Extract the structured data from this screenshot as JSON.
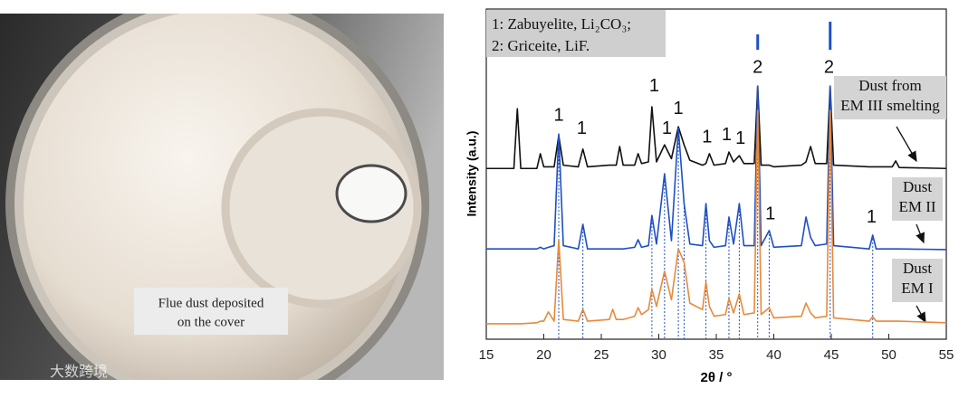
{
  "photo": {
    "caption": [
      "Flue dust deposited",
      "on the cover"
    ]
  },
  "watermark": "大数跨境",
  "chart_data": {
    "type": "line",
    "xlabel": "2θ / °",
    "ylabel": "Intensity (a.u.)",
    "phase_labels": [
      "1: Zabuyelite, Li₂CO₃;",
      "2: Griceite, LiF."
    ],
    "xlim": [
      15,
      55
    ],
    "xticks": [
      15,
      20,
      25,
      30,
      35,
      40,
      45,
      50,
      55
    ],
    "ylim": [
      0,
      100
    ],
    "grid": false,
    "x": [
      15,
      17.4,
      17.7,
      18.0,
      19.4,
      19.7,
      20.0,
      20.4,
      20.9,
      21.3,
      21.7,
      23.0,
      23.4,
      23.8,
      25.7,
      26.0,
      26.3,
      26.6,
      26.9,
      27.9,
      28.2,
      28.5,
      29.1,
      29.4,
      29.8,
      30.5,
      31.1,
      31.7,
      32.2,
      32.7,
      33.8,
      34.1,
      34.4,
      34.8,
      35.8,
      36.1,
      36.5,
      37.0,
      37.4,
      38.3,
      38.6,
      38.9,
      39.6,
      40.0,
      42.4,
      42.8,
      43.2,
      43.6,
      44.6,
      44.9,
      45.2,
      48.3,
      48.6,
      48.9,
      50.3,
      50.6,
      50.9,
      55
    ],
    "series": [
      {
        "name": "Dust from\nEM III smelting",
        "color": "#111111",
        "values": [
          52,
          52,
          70.2,
          52,
          52,
          56.5,
          52.5,
          52.5,
          52.5,
          62,
          53,
          52.5,
          57.9,
          52.5,
          53,
          53,
          53,
          58.7,
          53,
          53,
          56.5,
          53.5,
          54,
          70.8,
          54,
          59.2,
          55,
          64.7,
          59.2,
          54.5,
          53,
          53.5,
          56.5,
          53,
          53.5,
          57,
          54,
          55.9,
          53.5,
          53.5,
          77.1,
          53,
          53,
          52.5,
          53,
          54,
          58.7,
          53.5,
          53.5,
          77.1,
          53,
          52.5,
          52.5,
          52.5,
          52.5,
          54.3,
          52.3,
          52
        ]
      },
      {
        "name": "Dust\nEM II",
        "color": "#1f4fc4",
        "values": [
          27.5,
          27.5,
          27.5,
          27.5,
          27.5,
          28,
          27.5,
          28,
          28.5,
          62.5,
          28.5,
          27.5,
          35,
          27.5,
          27.5,
          27.5,
          27.5,
          27.5,
          27.5,
          28,
          30.3,
          28,
          28.5,
          37.7,
          29,
          50.4,
          30,
          64.2,
          41.3,
          29,
          28.5,
          41.3,
          30,
          28,
          28.5,
          37.2,
          29,
          41.3,
          28.5,
          28.5,
          77.1,
          28.5,
          33.1,
          28,
          28.5,
          37.2,
          31,
          28.5,
          29,
          77.1,
          28.5,
          27.5,
          31.7,
          27.5,
          27.5,
          27.5,
          27.5,
          27.3
        ]
      },
      {
        "name": "Dust\nEM I",
        "color": "#e88a3a",
        "values": [
          4.7,
          4.7,
          4.7,
          4.7,
          5,
          5.5,
          5.5,
          8.3,
          5.5,
          30.3,
          6,
          5.5,
          9.1,
          5.5,
          6,
          9.1,
          6,
          6,
          6,
          7,
          9.6,
          7.5,
          9,
          15.2,
          10,
          20.7,
          12,
          27.5,
          23.4,
          11,
          9,
          17.4,
          10,
          7,
          7.5,
          12.4,
          8,
          13.8,
          7.5,
          8,
          69.7,
          7.5,
          9.6,
          6.5,
          7,
          11,
          8,
          6.5,
          7,
          69.7,
          6.5,
          5.5,
          6.9,
          5.5,
          5.5,
          5.5,
          5.5,
          5
        ]
      }
    ],
    "reference_lines": [
      21.3,
      23.4,
      29.4,
      30.5,
      31.7,
      32.2,
      34.1,
      36.1,
      37.0,
      38.6,
      39.6,
      44.9,
      48.6
    ],
    "phase_markers": [
      38.6,
      44.9
    ],
    "annotations": [
      {
        "text": "1",
        "x": 21.3,
        "y": 68
      },
      {
        "text": "1",
        "x": 23.3,
        "y": 64
      },
      {
        "text": "1",
        "x": 29.6,
        "y": 77
      },
      {
        "text": "1",
        "x": 30.7,
        "y": 64
      },
      {
        "text": "1",
        "x": 31.7,
        "y": 70
      },
      {
        "text": "1",
        "x": 34.2,
        "y": 61.4
      },
      {
        "text": "1",
        "x": 35.9,
        "y": 62
      },
      {
        "text": "1",
        "x": 37.1,
        "y": 61
      },
      {
        "text": "2",
        "x": 38.6,
        "y": 82.6
      },
      {
        "text": "2",
        "x": 44.8,
        "y": 82.6
      },
      {
        "text": "1",
        "x": 39.7,
        "y": 38
      },
      {
        "text": "1",
        "x": 48.5,
        "y": 37
      }
    ]
  }
}
